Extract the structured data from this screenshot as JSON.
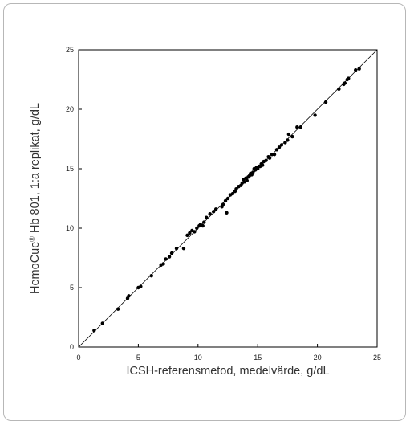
{
  "chart_data": {
    "type": "scatter",
    "xlabel": "ICSH-referensmetod, medelvärde, g/dL",
    "ylabel": {
      "pre": "HemoCue",
      "sup": "®",
      "post": " Hb 801, 1:a replikat, g/dL"
    },
    "xlim": [
      0,
      25
    ],
    "ylim": [
      0,
      25
    ],
    "xticks": [
      0,
      5,
      10,
      15,
      20,
      25
    ],
    "yticks": [
      0,
      5,
      10,
      15,
      20,
      25
    ],
    "grid": false,
    "identity_line": true,
    "points": [
      [
        1.3,
        1.4
      ],
      [
        2.0,
        2.0
      ],
      [
        3.3,
        3.2
      ],
      [
        4.1,
        4.1
      ],
      [
        4.2,
        4.3
      ],
      [
        5.0,
        5.0
      ],
      [
        5.2,
        5.1
      ],
      [
        6.1,
        6.0
      ],
      [
        6.9,
        6.9
      ],
      [
        7.1,
        7.0
      ],
      [
        7.3,
        7.4
      ],
      [
        7.6,
        7.6
      ],
      [
        7.8,
        7.9
      ],
      [
        8.2,
        8.3
      ],
      [
        8.8,
        8.3
      ],
      [
        9.1,
        9.4
      ],
      [
        9.3,
        9.6
      ],
      [
        9.5,
        9.8
      ],
      [
        9.7,
        9.7
      ],
      [
        9.9,
        10.0
      ],
      [
        10.1,
        10.2
      ],
      [
        10.2,
        10.3
      ],
      [
        10.4,
        10.2
      ],
      [
        10.5,
        10.5
      ],
      [
        10.7,
        10.9
      ],
      [
        11.0,
        11.2
      ],
      [
        11.3,
        11.4
      ],
      [
        11.5,
        11.6
      ],
      [
        12.0,
        11.8
      ],
      [
        12.1,
        12.0
      ],
      [
        12.3,
        12.3
      ],
      [
        12.4,
        11.3
      ],
      [
        12.5,
        12.5
      ],
      [
        12.7,
        12.8
      ],
      [
        12.9,
        12.9
      ],
      [
        13.1,
        13.1
      ],
      [
        13.2,
        13.3
      ],
      [
        13.4,
        13.5
      ],
      [
        13.6,
        13.6
      ],
      [
        13.7,
        13.8
      ],
      [
        13.8,
        14.1
      ],
      [
        13.9,
        13.9
      ],
      [
        14.0,
        14.2
      ],
      [
        14.1,
        14.0
      ],
      [
        14.2,
        14.3
      ],
      [
        14.3,
        14.4
      ],
      [
        14.4,
        14.6
      ],
      [
        14.5,
        14.5
      ],
      [
        14.6,
        14.7
      ],
      [
        14.7,
        15.0
      ],
      [
        14.8,
        14.9
      ],
      [
        14.9,
        15.1
      ],
      [
        15.0,
        15.0
      ],
      [
        15.1,
        15.2
      ],
      [
        15.2,
        15.2
      ],
      [
        15.3,
        15.4
      ],
      [
        15.4,
        15.3
      ],
      [
        15.5,
        15.6
      ],
      [
        15.7,
        15.7
      ],
      [
        15.9,
        16.0
      ],
      [
        16.0,
        15.9
      ],
      [
        16.2,
        16.2
      ],
      [
        16.4,
        16.2
      ],
      [
        16.6,
        16.6
      ],
      [
        16.8,
        16.8
      ],
      [
        17.0,
        17.0
      ],
      [
        17.3,
        17.2
      ],
      [
        17.5,
        17.4
      ],
      [
        17.6,
        17.9
      ],
      [
        17.9,
        17.7
      ],
      [
        18.3,
        18.5
      ],
      [
        18.6,
        18.5
      ],
      [
        19.8,
        19.5
      ],
      [
        20.7,
        20.6
      ],
      [
        21.8,
        21.7
      ],
      [
        22.2,
        22.1
      ],
      [
        22.3,
        22.2
      ],
      [
        22.5,
        22.5
      ],
      [
        22.6,
        22.6
      ],
      [
        23.2,
        23.3
      ],
      [
        23.5,
        23.4
      ]
    ]
  }
}
